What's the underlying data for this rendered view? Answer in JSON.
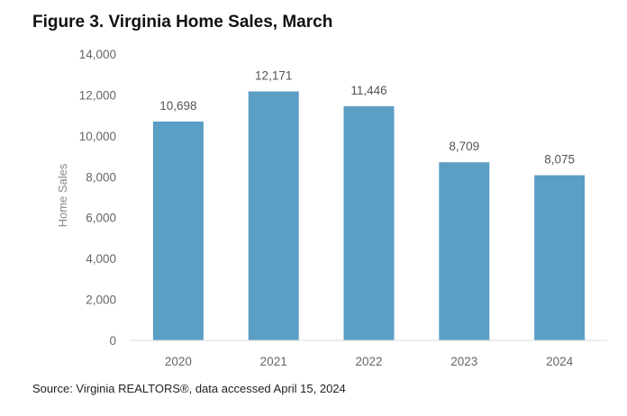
{
  "chart_data": {
    "type": "bar",
    "title": "Figure 3. Virginia Home Sales, March",
    "xlabel": "",
    "ylabel": "Home Sales",
    "categories": [
      "2020",
      "2021",
      "2022",
      "2023",
      "2024"
    ],
    "values": [
      10698,
      12171,
      11446,
      8709,
      8075
    ],
    "value_labels": [
      "10,698",
      "12,171",
      "11,446",
      "8,709",
      "8,075"
    ],
    "ylim": [
      0,
      14000
    ],
    "yticks": [
      0,
      2000,
      4000,
      6000,
      8000,
      10000,
      12000,
      14000
    ],
    "ytick_labels": [
      "0",
      "2,000",
      "4,000",
      "6,000",
      "8,000",
      "10,000",
      "12,000",
      "14,000"
    ],
    "grid": false,
    "legend": "none",
    "bar_color": "#5b9ec6",
    "source": "Source: Virginia REALTORS®, data accessed April 15, 2024"
  }
}
